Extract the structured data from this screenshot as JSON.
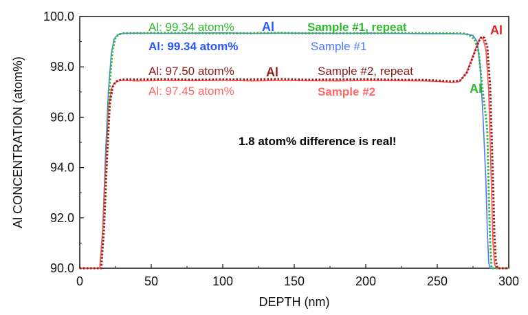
{
  "chart_data": {
    "type": "line",
    "xlabel": "DEPTH (nm)",
    "ylabel": "Al CONCENTRATION (atom%)",
    "xlim": [
      0,
      300
    ],
    "ylim": [
      90,
      100
    ],
    "xticks": [
      "0",
      "50",
      "100",
      "150",
      "200",
      "250",
      "300"
    ],
    "yticks": [
      "90.0",
      "92.0",
      "94.0",
      "96.0",
      "98.0",
      "100.0"
    ],
    "grid": false,
    "series": [
      {
        "name": "Sample #1",
        "color": "#4a78ff",
        "style": "solid",
        "x": [
          0,
          14,
          16,
          18,
          20,
          22,
          24,
          26,
          28,
          30,
          40,
          60,
          80,
          100,
          120,
          140,
          160,
          180,
          200,
          220,
          240,
          260,
          270,
          275,
          278,
          280,
          282,
          284,
          285,
          286,
          287,
          300
        ],
        "y": [
          90.0,
          90.0,
          91.5,
          94.5,
          97.0,
          98.5,
          99.1,
          99.25,
          99.3,
          99.33,
          99.34,
          99.33,
          99.34,
          99.35,
          99.33,
          99.34,
          99.34,
          99.33,
          99.34,
          99.33,
          99.32,
          99.32,
          99.3,
          99.25,
          99.0,
          98.0,
          96.0,
          93.5,
          91.5,
          90.2,
          90.0,
          90.0
        ]
      },
      {
        "name": "Sample #1, repeat",
        "color": "#2eb82e",
        "style": "dotted",
        "x": [
          0,
          15,
          17,
          19,
          21,
          23,
          25,
          27,
          29,
          31,
          40,
          60,
          80,
          100,
          120,
          140,
          160,
          180,
          200,
          220,
          240,
          260,
          268,
          272,
          276,
          279,
          281,
          283,
          285,
          286,
          287,
          288,
          300
        ],
        "y": [
          90.0,
          90.0,
          91.8,
          95.0,
          97.4,
          98.7,
          99.15,
          99.28,
          99.32,
          99.34,
          99.34,
          99.35,
          99.34,
          99.33,
          99.34,
          99.35,
          99.33,
          99.34,
          99.33,
          99.35,
          99.34,
          99.33,
          99.33,
          99.28,
          99.1,
          98.6,
          97.4,
          96.5,
          95.5,
          93.0,
          91.0,
          90.0,
          90.0
        ]
      },
      {
        "name": "Sample #2",
        "color": "#ff5555",
        "style": "solid",
        "x": [
          0,
          14,
          16,
          18,
          20,
          22,
          24,
          26,
          28,
          30,
          40,
          60,
          80,
          100,
          120,
          140,
          160,
          180,
          200,
          220,
          240,
          250,
          260,
          265,
          270,
          274,
          278,
          280,
          282,
          284,
          286,
          288,
          289,
          290,
          291,
          300
        ],
        "y": [
          90.0,
          90.0,
          91.5,
          94.0,
          96.3,
          97.1,
          97.35,
          97.42,
          97.45,
          97.46,
          97.44,
          97.46,
          97.45,
          97.47,
          97.44,
          97.46,
          97.45,
          97.44,
          97.46,
          97.45,
          97.44,
          97.42,
          97.38,
          97.4,
          97.7,
          98.3,
          98.9,
          99.15,
          99.1,
          98.7,
          97.0,
          93.0,
          91.0,
          90.2,
          90.0,
          90.0
        ]
      },
      {
        "name": "Sample #2, repeat",
        "color": "#a01818",
        "style": "dotted",
        "x": [
          0,
          15,
          17,
          19,
          21,
          23,
          25,
          27,
          29,
          31,
          40,
          60,
          80,
          100,
          120,
          140,
          160,
          180,
          200,
          220,
          240,
          250,
          260,
          266,
          271,
          275,
          279,
          281,
          283,
          285,
          287,
          289,
          290,
          291,
          292,
          300
        ],
        "y": [
          90.0,
          90.0,
          91.6,
          94.3,
          96.5,
          97.2,
          97.4,
          97.46,
          97.49,
          97.5,
          97.5,
          97.51,
          97.49,
          97.5,
          97.5,
          97.52,
          97.49,
          97.5,
          97.51,
          97.49,
          97.48,
          97.46,
          97.42,
          97.45,
          97.8,
          98.4,
          99.0,
          99.2,
          99.15,
          98.8,
          97.2,
          93.5,
          91.3,
          90.3,
          90.0,
          90.0
        ]
      }
    ]
  },
  "annotations": {
    "s1r_value": "Al: 99.34 atom%",
    "s1r_el": "Al",
    "s1r_label": "Sample #1, repeat",
    "s1_value": "Al: 99.34 atom%",
    "s1_label": "Sample #1",
    "s2r_value": "Al: 97.50 atom%",
    "s2r_el": "Al",
    "s2r_label": "Sample #2, repeat",
    "s2_value": "Al: 97.45 atom%",
    "s2_label": "Sample #2",
    "red_tag": "Al",
    "green_tag": "Al",
    "note": "1.8 atom% difference is real!"
  },
  "colors": {
    "green_text": "#2eb82e",
    "blue_text": "#2a55ff",
    "blue_light_text": "#4a78ff",
    "darkred_text": "#8c1a1a",
    "pink_text": "#ff6666",
    "red_tag": "#e02020"
  }
}
